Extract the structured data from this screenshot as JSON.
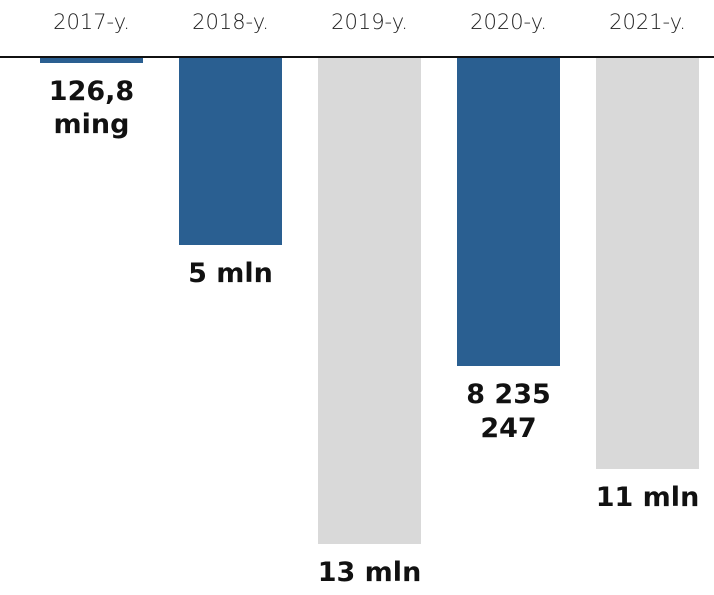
{
  "chart_data": {
    "type": "bar",
    "categories": [
      "2017-y.",
      "2018-y.",
      "2019-y.",
      "2020-y.",
      "2021-y."
    ],
    "values": [
      126800,
      5000000,
      13000000,
      8235247,
      11000000
    ],
    "value_labels": [
      "126,8 ming",
      "5 mln",
      "13 mln",
      "8 235 247",
      "11 mln"
    ],
    "colors": [
      "#2a5f91",
      "#2a5f91",
      "#d9d9d9",
      "#2a5f91",
      "#d9d9d9"
    ]
  }
}
